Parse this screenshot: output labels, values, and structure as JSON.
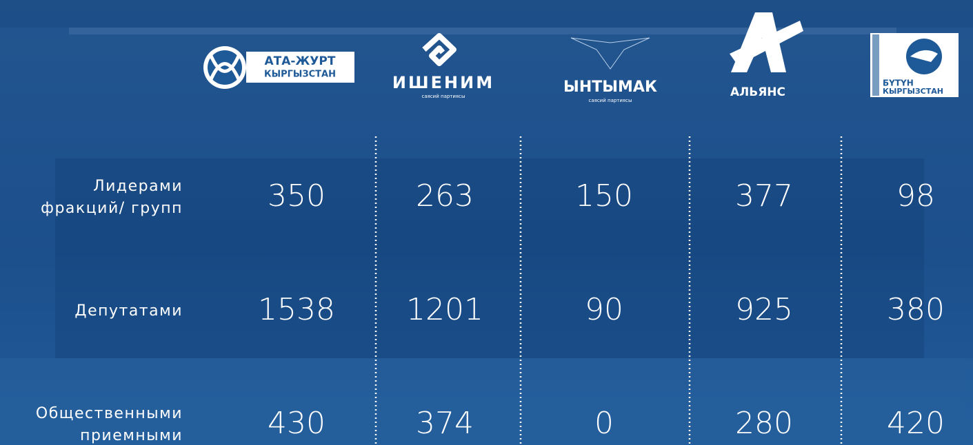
{
  "columns": [
    {
      "name": "АТА-ЖУРТ",
      "subtitle": "КЫРГЫЗСТАН"
    },
    {
      "name": "ИШЕНИМ",
      "subtitle": "саясий партиясы"
    },
    {
      "name": "ЫНТЫМАК",
      "subtitle": "саясий партиясы"
    },
    {
      "name": "АЛЬЯНС"
    },
    {
      "name": "БҮТҮН",
      "subtitle": "КЫРГЫЗСТАН"
    }
  ],
  "rows": [
    {
      "label": [
        "Лидерами",
        "фракций/ групп"
      ],
      "values": [
        350,
        263,
        150,
        377,
        98
      ]
    },
    {
      "label": [
        "Депутатами"
      ],
      "values": [
        1538,
        1201,
        90,
        925,
        380
      ]
    },
    {
      "label": [
        "Общественными",
        "приемными"
      ],
      "values": [
        430,
        374,
        0,
        280,
        420
      ]
    }
  ]
}
